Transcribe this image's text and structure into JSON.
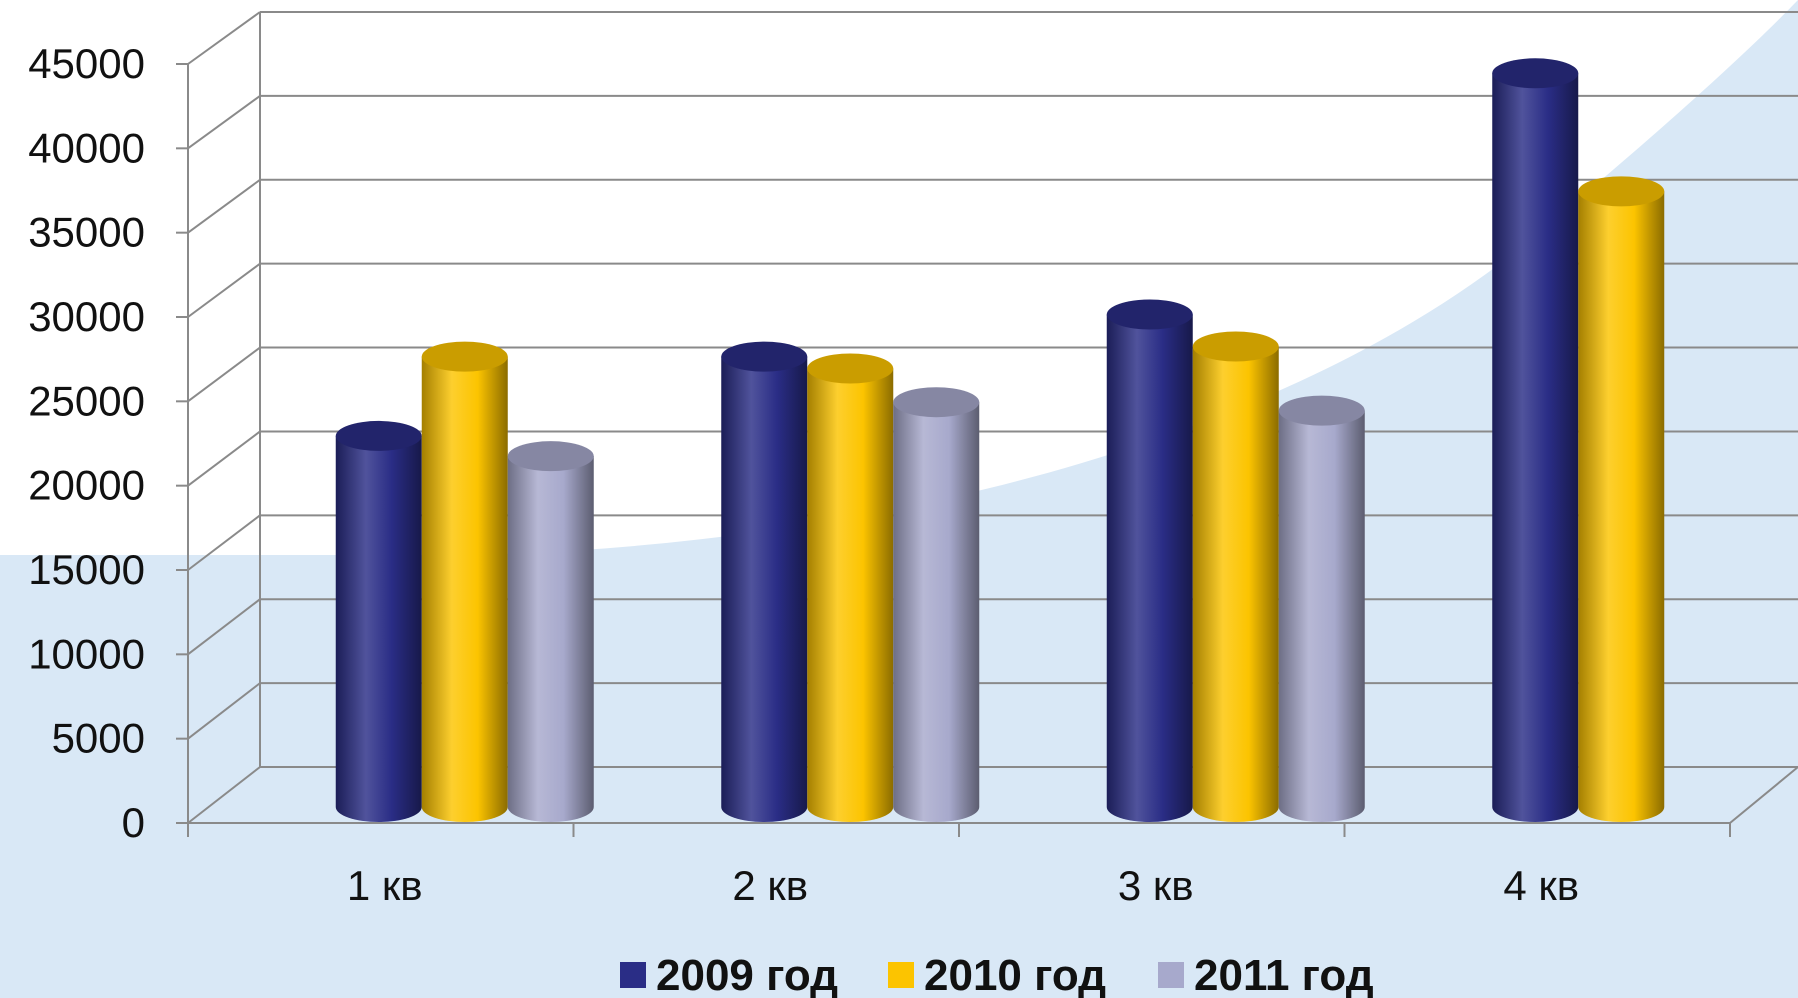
{
  "chart_data": {
    "type": "bar",
    "title": "",
    "xlabel": "",
    "ylabel": "",
    "categories": [
      "1 кв",
      "2 кв",
      "3 кв",
      "4 кв"
    ],
    "series": [
      {
        "name": "2009 год",
        "color": "#2a2d86",
        "values": [
          22000,
          26700,
          29200,
          43500
        ]
      },
      {
        "name": "2010 год",
        "color": "#fcc400",
        "values": [
          26700,
          26000,
          27300,
          36500
        ]
      },
      {
        "name": "2011 год",
        "color": "#a7a9cc",
        "values": [
          20800,
          24000,
          23500,
          null
        ]
      }
    ],
    "ylim": [
      0,
      45000
    ],
    "yticks": [
      "0",
      "5000",
      "10000",
      "15000",
      "20000",
      "25000",
      "30000",
      "35000",
      "40000",
      "45000"
    ],
    "grid": true,
    "legend_position": "bottom",
    "background_accent": "#d9e8f6"
  }
}
